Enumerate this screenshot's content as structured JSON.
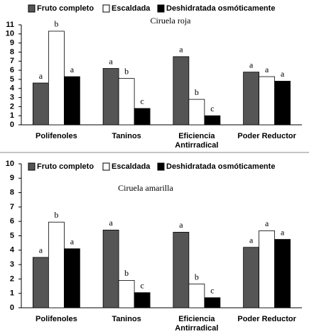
{
  "chart_data": [
    {
      "type": "bar",
      "title": "Ciruela roja",
      "categories": [
        "Polifenoles",
        "Taninos",
        "Eficiencia\nAntirradical",
        "Poder Reductor"
      ],
      "series": [
        {
          "name": "Fruto completo",
          "color": "#555555",
          "values": [
            4.6,
            6.2,
            7.5,
            5.8
          ],
          "significance": [
            "a",
            "a",
            "a",
            "a"
          ]
        },
        {
          "name": "Escaldada",
          "color": "#ffffff",
          "values": [
            10.3,
            5.1,
            2.8,
            5.3
          ],
          "significance": [
            "b",
            "b",
            "b",
            "a"
          ]
        },
        {
          "name": "Deshidratada osmóticamente",
          "color": "#000000",
          "values": [
            5.3,
            1.8,
            1.0,
            4.8
          ],
          "significance": [
            "a",
            "c",
            "c",
            "a"
          ]
        }
      ],
      "ylim": [
        0,
        11
      ],
      "yticks": [
        0,
        1,
        2,
        3,
        4,
        5,
        6,
        7,
        8,
        9,
        10,
        11
      ]
    },
    {
      "type": "bar",
      "title": "Ciruela amarilla",
      "categories": [
        "Polifenoles",
        "Taninos",
        "Eficiencia\nAntirradical",
        "Poder Reductor"
      ],
      "series": [
        {
          "name": "Fruto completo",
          "color": "#555555",
          "values": [
            3.5,
            5.4,
            5.25,
            4.2
          ],
          "significance": [
            "a",
            "a",
            "a",
            "a"
          ]
        },
        {
          "name": "Escaldada",
          "color": "#ffffff",
          "values": [
            5.95,
            1.9,
            1.65,
            5.35
          ],
          "significance": [
            "b",
            "b",
            "b",
            "a"
          ]
        },
        {
          "name": "Deshidratada osmóticamente",
          "color": "#000000",
          "values": [
            4.1,
            1.05,
            0.7,
            4.75
          ],
          "significance": [
            "a",
            "c",
            "c",
            "a"
          ]
        }
      ],
      "ylim": [
        0,
        10
      ],
      "yticks": [
        0,
        1,
        2,
        3,
        4,
        5,
        6,
        7,
        8,
        9,
        10
      ]
    }
  ]
}
